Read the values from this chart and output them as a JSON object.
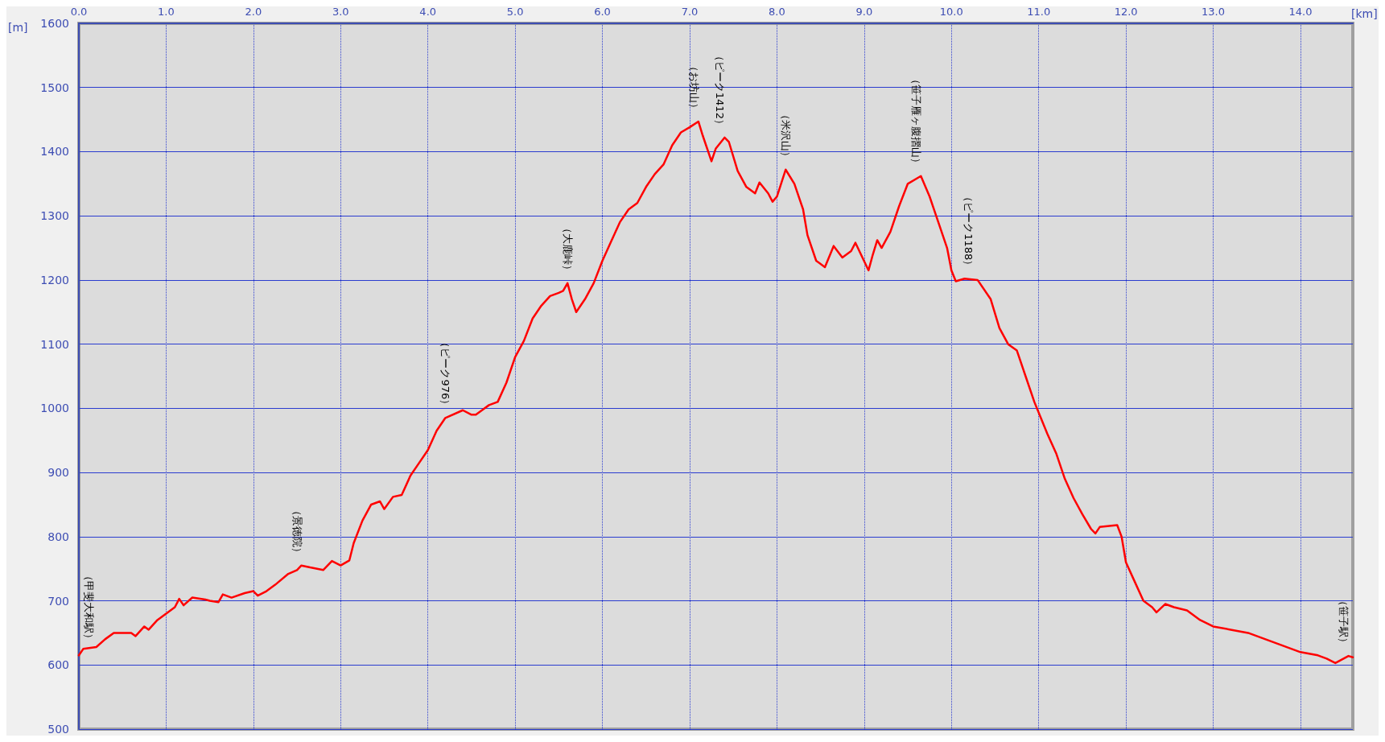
{
  "chart_data": {
    "type": "line",
    "xlabel": "[km]",
    "ylabel": "[m]",
    "xlim": [
      0,
      14.6
    ],
    "ylim": [
      500,
      1600
    ],
    "xticks": [
      {
        "value": 0,
        "label": "0.0"
      },
      {
        "value": 1,
        "label": "1.0"
      },
      {
        "value": 2,
        "label": "2.0"
      },
      {
        "value": 3,
        "label": "3.0"
      },
      {
        "value": 4,
        "label": "4.0"
      },
      {
        "value": 5,
        "label": "5.0"
      },
      {
        "value": 6,
        "label": "6.0"
      },
      {
        "value": 7,
        "label": "7.0"
      },
      {
        "value": 8,
        "label": "8.0"
      },
      {
        "value": 9,
        "label": "9.0"
      },
      {
        "value": 10,
        "label": "10.0"
      },
      {
        "value": 11,
        "label": "11.0"
      },
      {
        "value": 12,
        "label": "12.0"
      },
      {
        "value": 13,
        "label": "13.0"
      },
      {
        "value": 14,
        "label": "14.0"
      }
    ],
    "yticks": [
      500,
      600,
      700,
      800,
      900,
      1000,
      1100,
      1200,
      1300,
      1400,
      1500,
      1600
    ],
    "grid": true,
    "marker": "none",
    "line_style": "solid",
    "series": [
      {
        "color": "#ff0000",
        "x": [
          0,
          0.05,
          0.2,
          0.3,
          0.4,
          0.6,
          0.65,
          0.75,
          0.8,
          0.9,
          1.0,
          1.1,
          1.15,
          1.2,
          1.3,
          1.45,
          1.5,
          1.6,
          1.65,
          1.75,
          1.9,
          2.0,
          2.05,
          2.15,
          2.25,
          2.4,
          2.5,
          2.55,
          2.65,
          2.8,
          2.9,
          3.0,
          3.1,
          3.15,
          3.25,
          3.35,
          3.45,
          3.5,
          3.6,
          3.7,
          3.8,
          3.9,
          4.0,
          4.1,
          4.2,
          4.4,
          4.5,
          4.55,
          4.7,
          4.8,
          4.9,
          5.0,
          5.1,
          5.2,
          5.3,
          5.4,
          5.5,
          5.55,
          5.6,
          5.65,
          5.7,
          5.8,
          5.9,
          6.0,
          6.1,
          6.2,
          6.3,
          6.4,
          6.5,
          6.6,
          6.7,
          6.8,
          6.9,
          7.0,
          7.1,
          7.15,
          7.25,
          7.3,
          7.4,
          7.45,
          7.55,
          7.65,
          7.75,
          7.8,
          7.9,
          7.95,
          8.0,
          8.1,
          8.2,
          8.3,
          8.35,
          8.45,
          8.55,
          8.65,
          8.75,
          8.85,
          8.9,
          9.05,
          9.1,
          9.15,
          9.2,
          9.3,
          9.4,
          9.5,
          9.65,
          9.75,
          9.85,
          9.95,
          10.0,
          10.05,
          10.15,
          10.3,
          10.45,
          10.55,
          10.65,
          10.75,
          10.85,
          10.95,
          11.1,
          11.2,
          11.3,
          11.4,
          11.5,
          11.6,
          11.65,
          11.7,
          11.9,
          11.95,
          12.0,
          12.1,
          12.2,
          12.3,
          12.35,
          12.45,
          12.55,
          12.7,
          12.85,
          13.0,
          13.2,
          13.4,
          13.6,
          13.8,
          14.0,
          14.2,
          14.3,
          14.4,
          14.55,
          14.6
        ],
        "values": [
          615,
          625,
          628,
          640,
          650,
          650,
          645,
          660,
          655,
          670,
          680,
          690,
          703,
          693,
          705,
          702,
          700,
          698,
          710,
          705,
          712,
          715,
          708,
          715,
          725,
          742,
          748,
          755,
          752,
          748,
          762,
          755,
          763,
          790,
          825,
          850,
          855,
          843,
          862,
          865,
          895,
          915,
          935,
          965,
          985,
          997,
          990,
          990,
          1005,
          1010,
          1040,
          1080,
          1105,
          1140,
          1160,
          1175,
          1180,
          1183,
          1195,
          1170,
          1150,
          1170,
          1195,
          1230,
          1260,
          1290,
          1310,
          1320,
          1345,
          1365,
          1380,
          1410,
          1430,
          1438,
          1447,
          1425,
          1385,
          1405,
          1422,
          1415,
          1370,
          1345,
          1335,
          1352,
          1335,
          1322,
          1330,
          1372,
          1350,
          1310,
          1270,
          1230,
          1220,
          1253,
          1235,
          1245,
          1258,
          1215,
          1240,
          1262,
          1250,
          1275,
          1315,
          1350,
          1362,
          1330,
          1290,
          1250,
          1215,
          1198,
          1202,
          1200,
          1170,
          1125,
          1100,
          1090,
          1050,
          1010,
          960,
          930,
          890,
          860,
          835,
          812,
          805,
          815,
          818,
          800,
          760,
          730,
          700,
          690,
          682,
          695,
          690,
          685,
          670,
          660,
          655,
          650,
          640,
          630,
          620,
          615,
          610,
          603,
          614,
          612
        ]
      }
    ],
    "annotations": [
      {
        "text": "（甲斐大和駅）",
        "x": 0,
        "y": 620
      },
      {
        "text": "（景徳院）",
        "x": 2.5,
        "y": 755
      },
      {
        "text": "（ピーク976）",
        "x": 4.2,
        "y": 985
      },
      {
        "text": "（大鹿峠）",
        "x": 5.6,
        "y": 1195
      },
      {
        "text": "（お坊山）",
        "x": 7.05,
        "y": 1447
      },
      {
        "text": "（ピーク1412）",
        "x": 7.35,
        "y": 1422
      },
      {
        "text": "（米沢山）",
        "x": 8.1,
        "y": 1372
      },
      {
        "text": "（笹子雁ヶ腹摺山）",
        "x": 9.6,
        "y": 1362
      },
      {
        "text": "（ピーク1188）",
        "x": 10.2,
        "y": 1202
      },
      {
        "text": "（笹子駅）",
        "x": 14.6,
        "y": 614
      }
    ]
  }
}
